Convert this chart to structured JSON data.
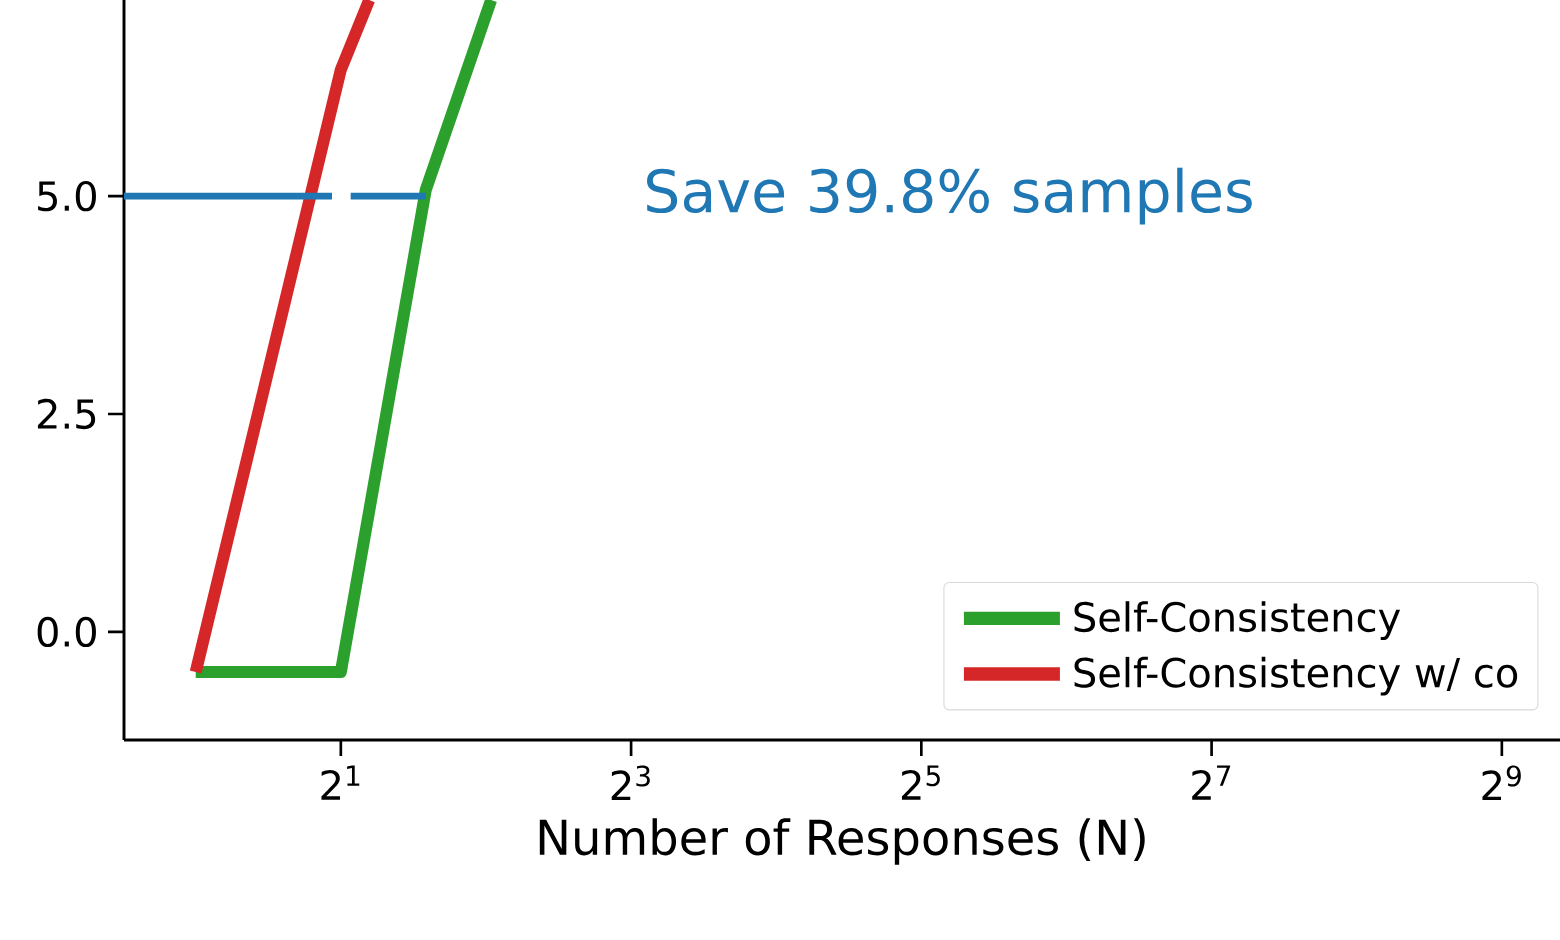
{
  "chart_data": {
    "type": "line",
    "xlabel": "Number of Responses (N)",
    "annotations": [
      "Save 39.8% samples"
    ],
    "log": "x",
    "xlim": [
      0.71,
      676
    ],
    "ylim": [
      -1.24,
      7.25
    ],
    "xticks": [
      {
        "value": 2,
        "label": "2$^{1}$"
      },
      {
        "value": 8,
        "label": "2$^{3}$"
      },
      {
        "value": 32,
        "label": "2$^{5}$"
      },
      {
        "value": 128,
        "label": "2$^{7}$"
      },
      {
        "value": 512,
        "label": "2$^{9}$"
      }
    ],
    "yticks": [
      {
        "value": 0,
        "label": "0.0"
      },
      {
        "value": 2.5,
        "label": "2.5"
      },
      {
        "value": 5,
        "label": "5.0"
      }
    ],
    "legend": "bottom right",
    "grid": false,
    "series": [
      {
        "name": "Self-Consistency",
        "color": "#2ca02c",
        "x": [
          1,
          2,
          3,
          4.1
        ],
        "values": [
          -0.46,
          -0.46,
          5.07,
          7.25
        ]
      },
      {
        "name": "Self-Consistency w/ co",
        "color": "#d62728",
        "x": [
          1,
          2,
          2.29
        ],
        "values": [
          -0.46,
          6.45,
          7.25
        ]
      },
      {
        "color": "#1f77b4",
        "line_style": "dashed",
        "x": [
          0.71,
          3
        ],
        "values": [
          5,
          5
        ]
      }
    ]
  }
}
